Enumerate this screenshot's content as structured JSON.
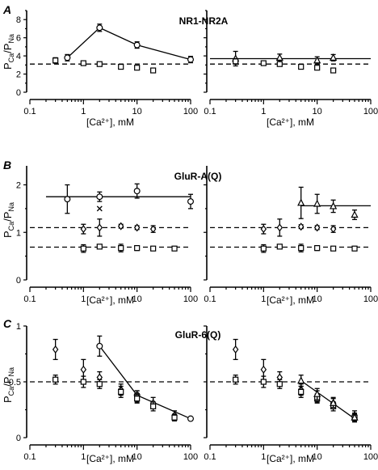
{
  "panels": [
    {
      "letter": "A",
      "title": "NR1-NR2A",
      "ylabel": "P_Ca/P_Na",
      "yticks": [
        0,
        2,
        4,
        6,
        8
      ],
      "ylim": [
        0,
        9
      ],
      "xlabel": "[Ca²⁺], mM",
      "xticks": [
        "0.1",
        "1",
        "10",
        "100"
      ],
      "xlim": [
        0.1,
        100
      ],
      "charts": [
        {
          "series": [
            {
              "marker": "circle",
              "x": [
                0.5,
                2,
                10,
                100
              ],
              "y": [
                3.8,
                7.1,
                5.2,
                3.6
              ],
              "err": [
                0.35,
                0.4,
                0.35,
                0.35
              ],
              "connect": "solid"
            },
            {
              "marker": "square",
              "x": [
                0.3,
                1,
                2,
                5,
                10,
                20
              ],
              "y": [
                3.5,
                3.2,
                3.1,
                2.8,
                2.7,
                2.4
              ],
              "err": [
                0.3,
                0.2,
                0.15,
                0.15,
                0.15,
                0.15
              ]
            }
          ],
          "hlines": [
            {
              "y": 3.1,
              "style": "dashed",
              "x": [
                0.1,
                100
              ]
            }
          ]
        },
        {
          "series": [
            {
              "marker": "triangle",
              "x": [
                0.3,
                2,
                10,
                20
              ],
              "y": [
                3.7,
                3.8,
                3.5,
                3.8
              ],
              "err": [
                0.8,
                0.4,
                0.4,
                0.35
              ]
            },
            {
              "marker": "square",
              "x": [
                0.3,
                1,
                2,
                5,
                10,
                20
              ],
              "y": [
                3.4,
                3.2,
                3.1,
                2.8,
                2.7,
                2.4
              ],
              "err": [
                0.3,
                0.2,
                0.15,
                0.15,
                0.15,
                0.15
              ]
            }
          ],
          "hlines": [
            {
              "y": 3.7,
              "style": "solid",
              "x": [
                0.1,
                100
              ]
            },
            {
              "y": 3.1,
              "style": "dashed",
              "x": [
                0.1,
                100
              ]
            }
          ]
        }
      ]
    },
    {
      "letter": "B",
      "title": "GluR-A(Q)",
      "ylabel": "P_Ca/P_Na",
      "yticks": [
        0,
        1,
        2
      ],
      "ylim": [
        0,
        2.4
      ],
      "xlabel": "[Ca²⁺], mM",
      "xticks": [
        "0.1",
        "1",
        "10",
        "100"
      ],
      "xlim": [
        0.1,
        100
      ],
      "charts": [
        {
          "series": [
            {
              "marker": "circle",
              "x": [
                0.5,
                2,
                10,
                100
              ],
              "y": [
                1.7,
                1.75,
                1.87,
                1.65
              ],
              "err": [
                0.3,
                0.1,
                0.15,
                0.15
              ]
            },
            {
              "marker": "x",
              "x": [
                2
              ],
              "y": [
                1.5
              ],
              "err": [
                0
              ]
            },
            {
              "marker": "diamond",
              "x": [
                1,
                2,
                5,
                10,
                20
              ],
              "y": [
                1.07,
                1.1,
                1.13,
                1.1,
                1.07
              ],
              "err": [
                0.1,
                0.18,
                0.04,
                0.04,
                0.07
              ]
            },
            {
              "marker": "square",
              "x": [
                1,
                2,
                5,
                10,
                20,
                50
              ],
              "y": [
                0.66,
                0.7,
                0.67,
                0.67,
                0.66,
                0.66
              ],
              "err": [
                0.08,
                0.04,
                0.08,
                0.05,
                0.04,
                0.03
              ]
            }
          ],
          "hlines": [
            {
              "y": 1.75,
              "style": "solid",
              "x": [
                0.2,
                100
              ]
            },
            {
              "y": 1.1,
              "style": "dashed",
              "x": [
                0.1,
                100
              ]
            },
            {
              "y": 0.69,
              "style": "dashed",
              "x": [
                0.1,
                100
              ]
            }
          ]
        },
        {
          "series": [
            {
              "marker": "triangle",
              "x": [
                5,
                10,
                20,
                50
              ],
              "y": [
                1.62,
                1.6,
                1.55,
                1.37
              ],
              "err": [
                0.33,
                0.2,
                0.13,
                0.1
              ]
            },
            {
              "marker": "diamond",
              "x": [
                1,
                2,
                5,
                10,
                20
              ],
              "y": [
                1.07,
                1.1,
                1.12,
                1.1,
                1.07
              ],
              "err": [
                0.1,
                0.18,
                0.04,
                0.04,
                0.07
              ]
            },
            {
              "marker": "square",
              "x": [
                1,
                2,
                5,
                10,
                20,
                50
              ],
              "y": [
                0.66,
                0.7,
                0.67,
                0.67,
                0.66,
                0.66
              ],
              "err": [
                0.08,
                0.04,
                0.08,
                0.05,
                0.04,
                0.03
              ]
            }
          ],
          "hlines": [
            {
              "y": 1.56,
              "style": "solid",
              "x": [
                5,
                100
              ]
            },
            {
              "y": 1.1,
              "style": "dashed",
              "x": [
                0.1,
                100
              ]
            },
            {
              "y": 0.69,
              "style": "dashed",
              "x": [
                0.1,
                100
              ]
            }
          ]
        }
      ]
    },
    {
      "letter": "C",
      "title": "GluR-6(Q)",
      "ylabel": "P_Ca/P_Na",
      "yticks": [
        0,
        0.5,
        1
      ],
      "ylim": [
        0,
        1
      ],
      "xlabel": "[Ca²⁺], mM",
      "xticks": [
        "0.1",
        "1",
        "10",
        "100"
      ],
      "xlim": [
        0.1,
        100
      ],
      "charts": [
        {
          "series": [
            {
              "marker": "circle",
              "x": [
                2,
                10,
                100
              ],
              "y": [
                0.82,
                0.38,
                0.17
              ],
              "err": [
                0.09,
                0.04,
                0
              ],
              "connect": "solid"
            },
            {
              "marker": "diamond",
              "x": [
                0.3,
                1,
                2,
                5,
                10,
                20,
                50
              ],
              "y": [
                0.79,
                0.61,
                0.54,
                0.43,
                0.37,
                0.31,
                0.2
              ],
              "err": [
                0.09,
                0.09,
                0.05,
                0.05,
                0.05,
                0.05,
                0.04
              ]
            },
            {
              "marker": "square",
              "x": [
                0.3,
                1,
                2,
                5,
                10,
                20,
                50
              ],
              "y": [
                0.52,
                0.5,
                0.48,
                0.41,
                0.35,
                0.28,
                0.18
              ],
              "err": [
                0.04,
                0.05,
                0.04,
                0.05,
                0.04,
                0.04,
                0.03
              ]
            }
          ],
          "hlines": [
            {
              "y": 0.5,
              "style": "dashed",
              "x": [
                0.1,
                100
              ]
            }
          ]
        },
        {
          "series": [
            {
              "marker": "diamond",
              "x": [
                0.3,
                1,
                2,
                5,
                10,
                20,
                50
              ],
              "y": [
                0.79,
                0.61,
                0.54,
                0.43,
                0.37,
                0.31,
                0.2
              ],
              "err": [
                0.09,
                0.09,
                0.05,
                0.05,
                0.05,
                0.05,
                0.04
              ]
            },
            {
              "marker": "square",
              "x": [
                0.3,
                1,
                2,
                5,
                10,
                20,
                50
              ],
              "y": [
                0.52,
                0.5,
                0.48,
                0.41,
                0.35,
                0.28,
                0.18
              ],
              "err": [
                0.04,
                0.05,
                0.04,
                0.05,
                0.04,
                0.04,
                0.03
              ]
            },
            {
              "marker": "triangle",
              "x": [
                5,
                10,
                20,
                50
              ],
              "y": [
                0.51,
                0.39,
                0.31,
                0.18
              ],
              "err": [
                0.05,
                0.05,
                0.04,
                0.04
              ]
            }
          ],
          "lines": [
            {
              "x": [
                5,
                50
              ],
              "y": [
                0.51,
                0.17
              ],
              "style": "solid"
            }
          ],
          "hlines": [
            {
              "y": 0.5,
              "style": "dashed",
              "x": [
                0.1,
                100
              ]
            }
          ]
        }
      ]
    }
  ]
}
